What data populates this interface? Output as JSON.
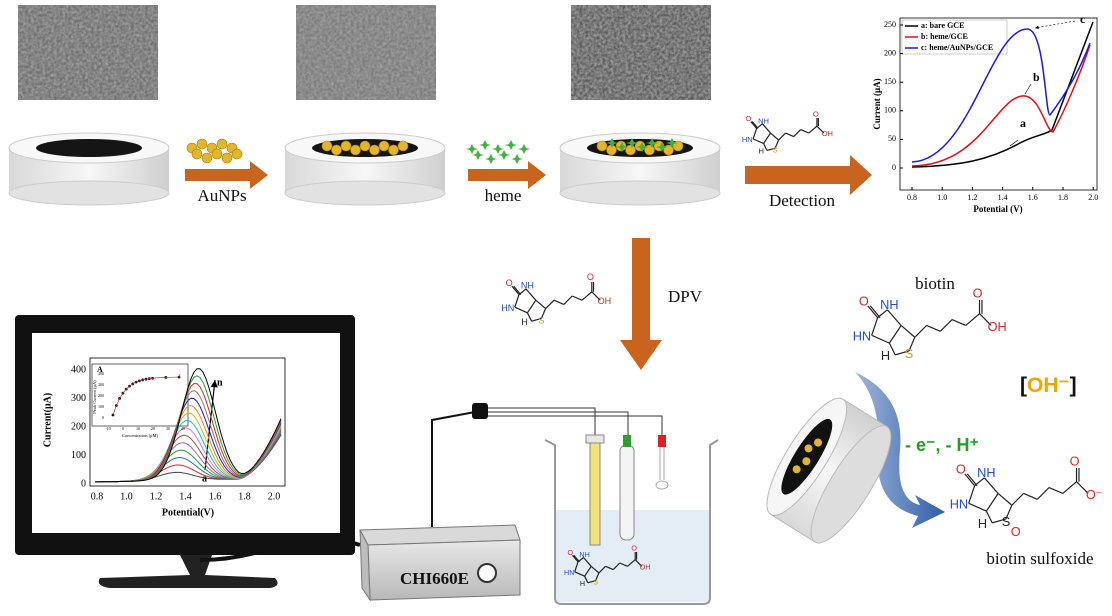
{
  "arrows": {
    "step1": "AuNPs",
    "step2": "heme",
    "step3": "Detection",
    "dpv": "DPV"
  },
  "detection_chart": {
    "y_label": "Current (μA)",
    "x_label": "Potential (V)",
    "yticks": [
      "0",
      "50",
      "100",
      "150",
      "200",
      "250"
    ],
    "xticks": [
      "0.8",
      "1.0",
      "1.2",
      "1.4",
      "1.6",
      "1.8",
      "2.0"
    ],
    "legend": [
      "a: bare GCE",
      "b: heme/GCE",
      "c: heme/AuNPs/GCE"
    ],
    "curve_labels": [
      "a",
      "b",
      "c"
    ]
  },
  "monitor_chart": {
    "y_label": "Current(μA)",
    "x_label": "Potential(V)",
    "yticks": [
      "0",
      "100",
      "200",
      "300",
      "400"
    ],
    "xticks": [
      "0.8",
      "1.0",
      "1.2",
      "1.4",
      "1.6",
      "1.8",
      "2.0"
    ],
    "curve_labels": [
      "n",
      "a"
    ],
    "inset": {
      "label": "A",
      "y_label": "Peak Current (μA)",
      "x_label": "Concentration (μM)",
      "yticks": [
        "0",
        "100",
        "200",
        "300",
        "400"
      ],
      "xticks": [
        "-10",
        "0",
        "10",
        "20",
        "30",
        "40"
      ]
    }
  },
  "instrument": "CHI660E",
  "reaction": {
    "reactant": "biotin",
    "medium": {
      "open": "[",
      "ion": "OH⁻",
      "close": "]"
    },
    "electron_loss": "- e⁻, - H⁺",
    "product": "biotin sulfoxide"
  },
  "molecules": {
    "biotin": {
      "atoms": [
        "O",
        "NH",
        "HN",
        "H",
        "S",
        "O",
        "OH"
      ]
    },
    "sulfoxide": {
      "atoms": [
        "O",
        "NH",
        "HN",
        "H",
        "S",
        "O",
        "O",
        "O⁻"
      ]
    }
  }
}
